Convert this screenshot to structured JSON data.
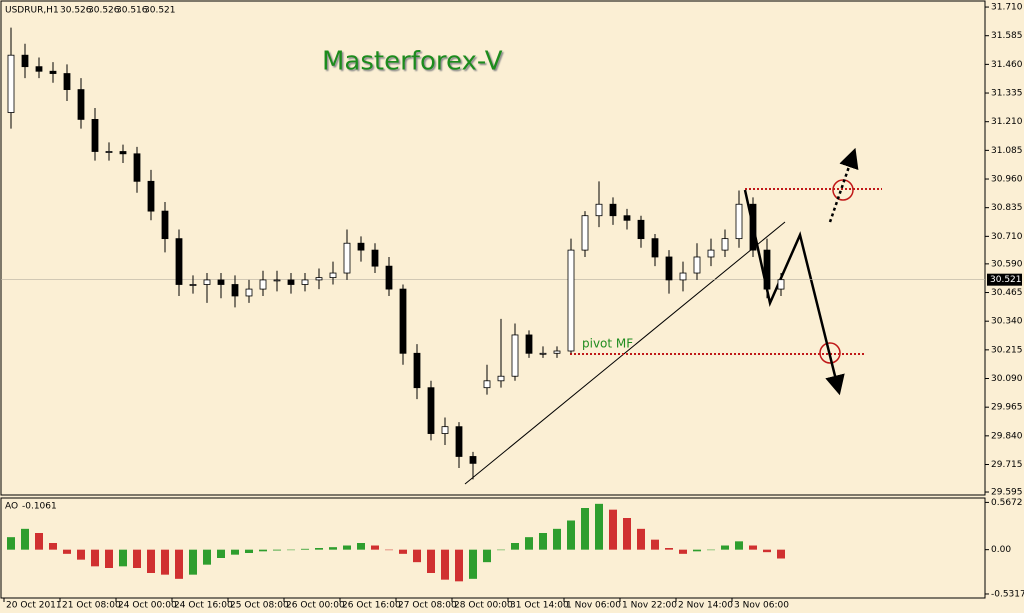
{
  "chart_data": {
    "type": "candlestick",
    "title": "Masterforex-V",
    "symbol": "USDRUR,H1",
    "header_values": [
      30.526,
      30.526,
      30.516,
      30.521
    ],
    "annotation": "pivot MF",
    "color": "#000000",
    "bull_fill": "#ffffff",
    "background": "#fbefd4",
    "categories": [
      "20 Oct 2011",
      null,
      null,
      null,
      "21 Oct 08:00",
      null,
      null,
      null,
      "24 Oct 00:00",
      null,
      null,
      null,
      "24 Oct 16:00",
      null,
      null,
      null,
      "25 Oct 08:00",
      null,
      null,
      null,
      "26 Oct 00:00",
      null,
      null,
      null,
      "26 Oct 16:00",
      null,
      null,
      null,
      "27 Oct 08:00",
      null,
      null,
      null,
      "28 Oct 00:00",
      null,
      null,
      null,
      "31 Oct 14:00",
      null,
      null,
      null,
      "1 Nov 06:00",
      null,
      null,
      null,
      "1 Nov 22:00",
      null,
      null,
      null,
      "2 Nov 14:00",
      null,
      null,
      null,
      "3 Nov 06:00",
      null,
      null,
      null
    ],
    "open": [
      31.25,
      31.5,
      31.45,
      31.43,
      31.42,
      31.35,
      31.22,
      31.08,
      31.08,
      31.07,
      30.95,
      30.82,
      30.7,
      30.5,
      30.5,
      30.52,
      30.5,
      30.45,
      30.48,
      30.52,
      30.52,
      30.5,
      30.52,
      30.53,
      30.55,
      30.68,
      30.65,
      30.58,
      30.48,
      30.2,
      30.05,
      29.85,
      29.88,
      29.75,
      30.05,
      30.08,
      30.1,
      30.28,
      30.2,
      30.2,
      30.21,
      30.65,
      30.8,
      30.85,
      30.8,
      30.78,
      30.7,
      30.62,
      30.52,
      30.55,
      30.62,
      30.65,
      30.7,
      30.85,
      30.65,
      30.48
    ],
    "high": [
      31.62,
      31.55,
      31.49,
      31.47,
      31.46,
      31.4,
      31.27,
      31.12,
      31.11,
      31.1,
      31.0,
      30.86,
      30.74,
      30.54,
      30.55,
      30.55,
      30.54,
      30.52,
      30.56,
      30.56,
      30.55,
      30.55,
      30.57,
      30.6,
      30.74,
      30.71,
      30.68,
      30.62,
      30.5,
      30.24,
      30.08,
      29.92,
      29.9,
      29.77,
      30.15,
      30.35,
      30.33,
      30.3,
      30.23,
      30.23,
      30.7,
      30.82,
      30.95,
      30.88,
      30.83,
      30.8,
      30.72,
      30.65,
      30.6,
      30.68,
      30.7,
      30.74,
      30.91,
      30.88,
      30.7,
      30.55
    ],
    "low": [
      31.18,
      31.4,
      31.4,
      31.38,
      31.3,
      31.18,
      31.04,
      31.04,
      31.03,
      30.9,
      30.78,
      30.64,
      30.45,
      30.46,
      30.42,
      30.44,
      30.4,
      30.42,
      30.45,
      30.47,
      30.46,
      30.47,
      30.48,
      30.5,
      30.52,
      30.6,
      30.55,
      30.45,
      30.15,
      30.0,
      29.82,
      29.8,
      29.7,
      29.65,
      30.02,
      30.05,
      30.08,
      30.18,
      30.18,
      30.18,
      30.2,
      30.62,
      30.75,
      30.76,
      30.74,
      30.66,
      30.58,
      30.46,
      30.47,
      30.52,
      30.58,
      30.62,
      30.66,
      30.62,
      30.44,
      30.45
    ],
    "close": [
      31.5,
      31.45,
      31.43,
      31.42,
      31.35,
      31.22,
      31.08,
      31.08,
      31.07,
      30.95,
      30.82,
      30.7,
      30.5,
      30.5,
      30.52,
      30.5,
      30.45,
      30.48,
      30.52,
      30.52,
      30.5,
      30.52,
      30.53,
      30.55,
      30.68,
      30.65,
      30.58,
      30.48,
      30.2,
      30.05,
      29.85,
      29.88,
      29.75,
      29.72,
      30.08,
      30.1,
      30.28,
      30.2,
      30.2,
      30.21,
      30.65,
      30.8,
      30.85,
      30.8,
      30.78,
      30.7,
      30.62,
      30.52,
      30.55,
      30.62,
      30.65,
      30.7,
      30.85,
      30.65,
      30.48,
      30.521
    ],
    "ylim": [
      29.582,
      31.732
    ],
    "yticks": [
      {
        "value": 31.71,
        "label": "31.710"
      },
      31.585,
      {
        "value": 31.46,
        "label": "31.460"
      },
      31.335,
      {
        "value": 31.21,
        "label": "31.210"
      },
      31.085,
      {
        "value": 30.96,
        "label": "30.960"
      },
      30.835,
      {
        "value": 30.71,
        "label": "30.710"
      },
      {
        "value": 30.59,
        "label": "30.590"
      },
      30.465,
      {
        "value": 30.34,
        "label": "30.340"
      },
      30.215,
      {
        "value": 30.09,
        "label": "30.090"
      },
      29.965,
      {
        "value": 29.84,
        "label": "29.840"
      },
      29.715,
      29.595
    ],
    "indicator": {
      "name": "AO",
      "up_color": "#2e9e2e",
      "down_color": "#d03030",
      "values": [
        0.15,
        0.25,
        0.2,
        0.08,
        -0.05,
        -0.12,
        -0.2,
        -0.22,
        -0.2,
        -0.22,
        -0.28,
        -0.3,
        -0.35,
        -0.3,
        -0.18,
        -0.1,
        -0.06,
        -0.04,
        -0.02,
        -0.01,
        0.0,
        0.01,
        0.02,
        0.03,
        0.05,
        0.08,
        0.05,
        0.0,
        -0.05,
        -0.15,
        -0.28,
        -0.36,
        -0.38,
        -0.35,
        -0.15,
        0.0,
        0.08,
        0.15,
        0.2,
        0.25,
        0.35,
        0.5,
        0.55,
        0.48,
        0.38,
        0.25,
        0.12,
        0.02,
        -0.05,
        -0.02,
        0.0,
        0.05,
        0.1,
        0.05,
        -0.03,
        -0.1061
      ],
      "ylim": [
        -0.58,
        0.62
      ],
      "yticks": [
        0.5672,
        {
          "value": 0,
          "label": "0.00"
        },
        -0.5317
      ]
    }
  }
}
